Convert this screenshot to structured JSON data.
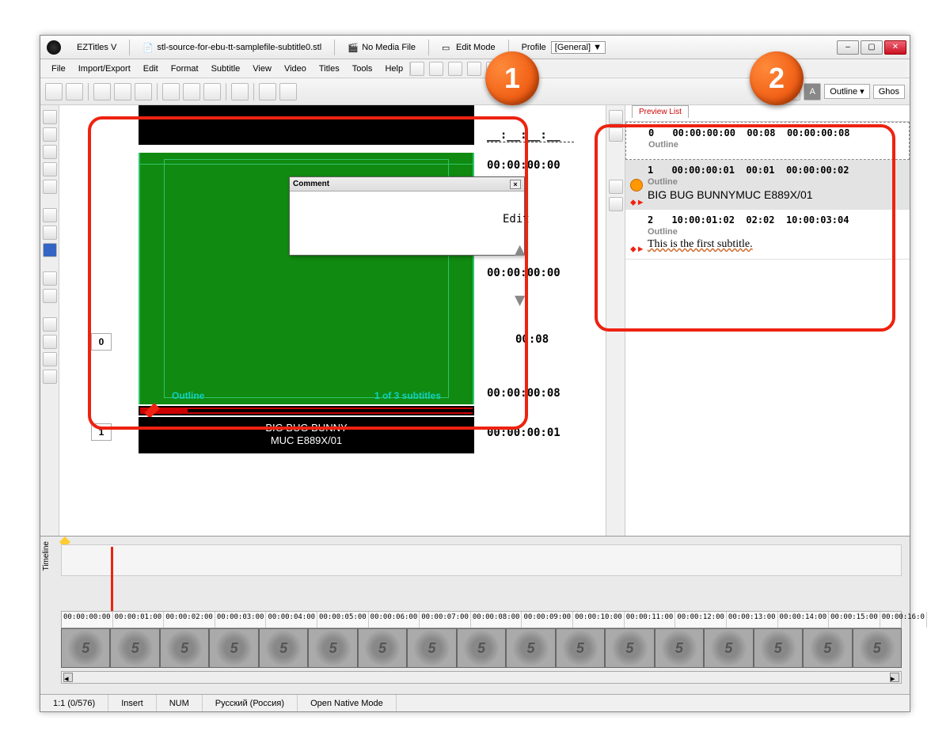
{
  "title": {
    "app": "EZTitles V",
    "file": "stl-source-for-ebu-tt-samplefile-subtitle0.stl",
    "media": "No Media File",
    "mode": "Edit Mode",
    "profile_label": "Profile",
    "profile_value": "[General]"
  },
  "menu": [
    "File",
    "Import/Export",
    "Edit",
    "Format",
    "Subtitle",
    "View",
    "Video",
    "Titles",
    "Tools",
    "Help"
  ],
  "toolbar_right": {
    "outline": "Outline",
    "ghost": "Ghos"
  },
  "center": {
    "idx0": "0",
    "idx1": "1",
    "tc1": "00:00:00:00",
    "edit": "Edit",
    "tc2": "00:00:00:00",
    "dur": "00:08",
    "tc3": "00:00:00:08",
    "tc4": "00:00:00:01",
    "overlay_left": "Outline",
    "overlay_right": "1 of 3 subtitles",
    "sub_line1": "BIG BUG BUNNY",
    "sub_line2": "MUC E889X/01",
    "comment_title": "Comment"
  },
  "preview_tab": "Preview List",
  "preview": [
    {
      "n": "0",
      "in": "00:00:00:00",
      "dur": "00:08",
      "out": "00:00:00:08",
      "style": "Outline",
      "lines": [],
      "sel": true
    },
    {
      "n": "1",
      "in": "00:00:00:01",
      "dur": "00:01",
      "out": "00:00:00:02",
      "style": "Outline",
      "lines": [
        "BIG BUG BUNNY",
        "MUC E889X/01"
      ],
      "gray": true,
      "clock": true,
      "diamond": true
    },
    {
      "n": "2",
      "in": "10:00:01:02",
      "dur": "02:02",
      "out": "10:00:03:04",
      "style": "Outline",
      "lines": [
        "This is the first subtitle."
      ],
      "serif": true,
      "diamond": true
    }
  ],
  "timeline": {
    "label": "Timeline",
    "ruler": [
      "00:00:00:00",
      "00:00:01:00",
      "00:00:02:00",
      "00:00:03:00",
      "00:00:04:00",
      "00:00:05:00",
      "00:00:06:00",
      "00:00:07:00",
      "00:00:08:00",
      "00:00:09:00",
      "00:00:10:00",
      "00:00:11:00",
      "00:00:12:00",
      "00:00:13:00",
      "00:00:14:00",
      "00:00:15:00",
      "00:00:16:0"
    ],
    "thumb_label": "5",
    "thumb_count": 17
  },
  "status": {
    "pos": "1:1 (0/576)",
    "insert": "Insert",
    "num": "NUM",
    "lang": "Русский (Россия)",
    "mode": "Open Native Mode"
  },
  "annotations": {
    "b1": "1",
    "b2": "2"
  },
  "colors": {
    "accent_red": "#e21a1a",
    "badge": "#ef5a1a",
    "green": "#118a11",
    "cyan": "#0fd0c0"
  }
}
